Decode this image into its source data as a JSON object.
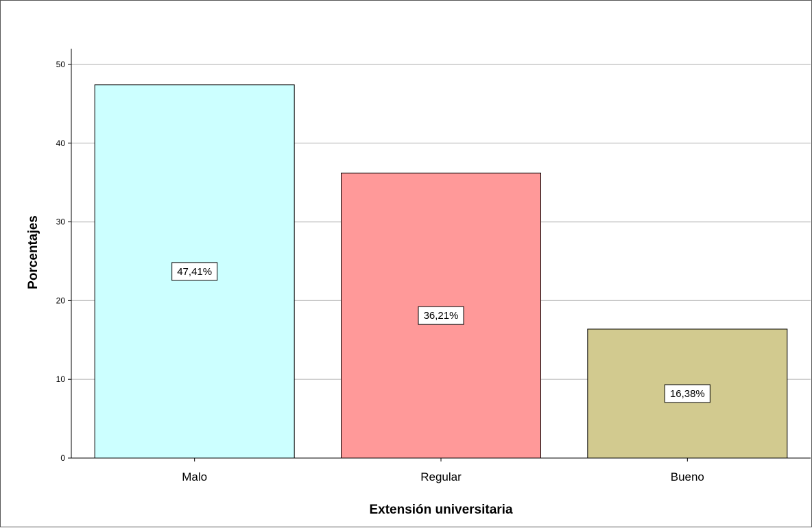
{
  "chart_data": {
    "type": "bar",
    "xlabel": "Extensión universitaria",
    "ylabel": "Porcentajes",
    "categories": [
      "Malo",
      "Regular",
      "Bueno"
    ],
    "values": [
      47.41,
      36.21,
      16.38
    ],
    "data_labels": [
      "47,41%",
      "36,21%",
      "16,38%"
    ],
    "colors": [
      "#ccffff",
      "#ff9999",
      "#d2ca8f"
    ],
    "ylim": [
      0,
      52
    ],
    "yticks": [
      0,
      10,
      20,
      30,
      40,
      50
    ],
    "grid": true,
    "legend": "none"
  }
}
